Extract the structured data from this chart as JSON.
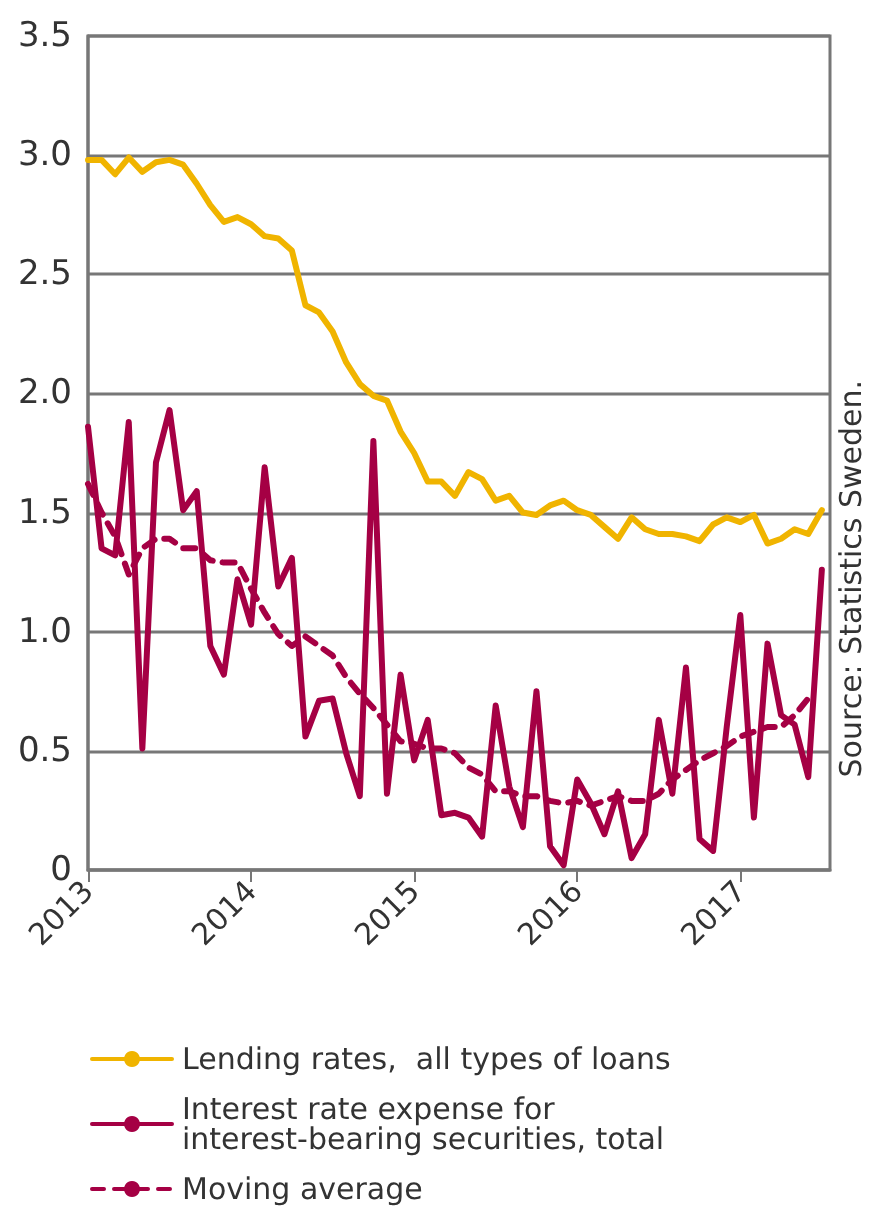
{
  "chart_data": {
    "type": "line",
    "x": [
      2013,
      2013.0833,
      2013.1667,
      2013.25,
      2013.3333,
      2013.4167,
      2013.5,
      2013.5833,
      2013.6667,
      2013.75,
      2013.8333,
      2013.9167,
      2014,
      2014.0833,
      2014.1667,
      2014.25,
      2014.3333,
      2014.4167,
      2014.5,
      2014.5833,
      2014.6667,
      2014.75,
      2014.8333,
      2014.9167,
      2015,
      2015.0833,
      2015.1667,
      2015.25,
      2015.3333,
      2015.4167,
      2015.5,
      2015.5833,
      2015.6667,
      2015.75,
      2015.8333,
      2015.9167,
      2016,
      2016.0833,
      2016.1667,
      2016.25,
      2016.3333,
      2016.4167,
      2016.5,
      2016.5833,
      2016.6667,
      2016.75,
      2016.8333,
      2016.9167,
      2017,
      2017.0833,
      2017.1667,
      2017.25,
      2017.3333,
      2017.4167,
      2017.5
    ],
    "series": [
      {
        "name": "Lending rates,  all types of loans",
        "color": "#f0b400",
        "values": [
          2.98,
          2.98,
          2.92,
          2.99,
          2.93,
          2.97,
          2.98,
          2.96,
          2.88,
          2.79,
          2.72,
          2.74,
          2.71,
          2.66,
          2.65,
          2.6,
          2.37,
          2.34,
          2.26,
          2.13,
          2.04,
          1.99,
          1.97,
          1.84,
          1.75,
          1.63,
          1.63,
          1.57,
          1.67,
          1.64,
          1.55,
          1.57,
          1.5,
          1.49,
          1.53,
          1.55,
          1.51,
          1.49,
          1.44,
          1.39,
          1.48,
          1.43,
          1.41,
          1.41,
          1.4,
          1.38,
          1.45,
          1.48,
          1.46,
          1.49,
          1.37,
          1.39,
          1.43,
          1.41,
          1.51
        ]
      },
      {
        "name": "Interest rate expense for interest-bearing securities, total",
        "color": "#a50044",
        "values": [
          1.86,
          1.35,
          1.32,
          1.88,
          0.51,
          1.71,
          1.93,
          1.51,
          1.59,
          0.94,
          0.82,
          1.22,
          1.03,
          1.69,
          1.19,
          1.31,
          0.56,
          0.71,
          0.72,
          0.49,
          0.31,
          1.8,
          0.32,
          0.82,
          0.46,
          0.63,
          0.23,
          0.24,
          0.22,
          0.14,
          0.69,
          0.35,
          0.18,
          0.75,
          0.1,
          0.02,
          0.38,
          0.28,
          0.15,
          0.33,
          0.05,
          0.15,
          0.63,
          0.32,
          0.85,
          0.13,
          0.08,
          0.6,
          1.07,
          0.22,
          0.95,
          0.65,
          0.61,
          0.39,
          1.26
        ]
      },
      {
        "name": "Moving average",
        "color": "#a50044",
        "line_style": "dashed",
        "values": [
          1.62,
          1.5,
          1.4,
          1.24,
          1.35,
          1.39,
          1.39,
          1.35,
          1.35,
          1.3,
          1.29,
          1.29,
          1.18,
          1.08,
          0.99,
          0.94,
          0.98,
          0.94,
          0.9,
          0.81,
          0.74,
          0.68,
          0.61,
          0.54,
          0.53,
          0.51,
          0.51,
          0.49,
          0.43,
          0.4,
          0.33,
          0.33,
          0.31,
          0.31,
          0.29,
          0.28,
          0.29,
          0.27,
          0.29,
          0.31,
          0.29,
          0.29,
          0.32,
          0.38,
          0.42,
          0.46,
          0.49,
          0.52,
          0.56,
          0.58,
          0.6,
          0.6,
          0.65,
          0.72,
          null
        ]
      }
    ],
    "xlim": [
      2013,
      2017.55
    ],
    "xticks": [
      2013,
      2014,
      2015,
      2016,
      2017
    ],
    "ylim": [
      0,
      3.5
    ],
    "yticks": [
      0,
      {
        "value": 0.5,
        "label": "0.5"
      },
      {
        "value": 1,
        "label": "1.0"
      },
      {
        "value": 1.5,
        "label": "1.5"
      },
      {
        "value": 2,
        "label": "2.0"
      },
      {
        "value": 2.5,
        "label": "2.5"
      },
      {
        "value": 3,
        "label": "3.0"
      },
      {
        "value": 3.5,
        "label": "3.5"
      }
    ],
    "grid": "y",
    "legend": "bottom",
    "marker": "none",
    "line_style": "solid",
    "annotations": [
      "Source: Statistics Sweden."
    ]
  }
}
